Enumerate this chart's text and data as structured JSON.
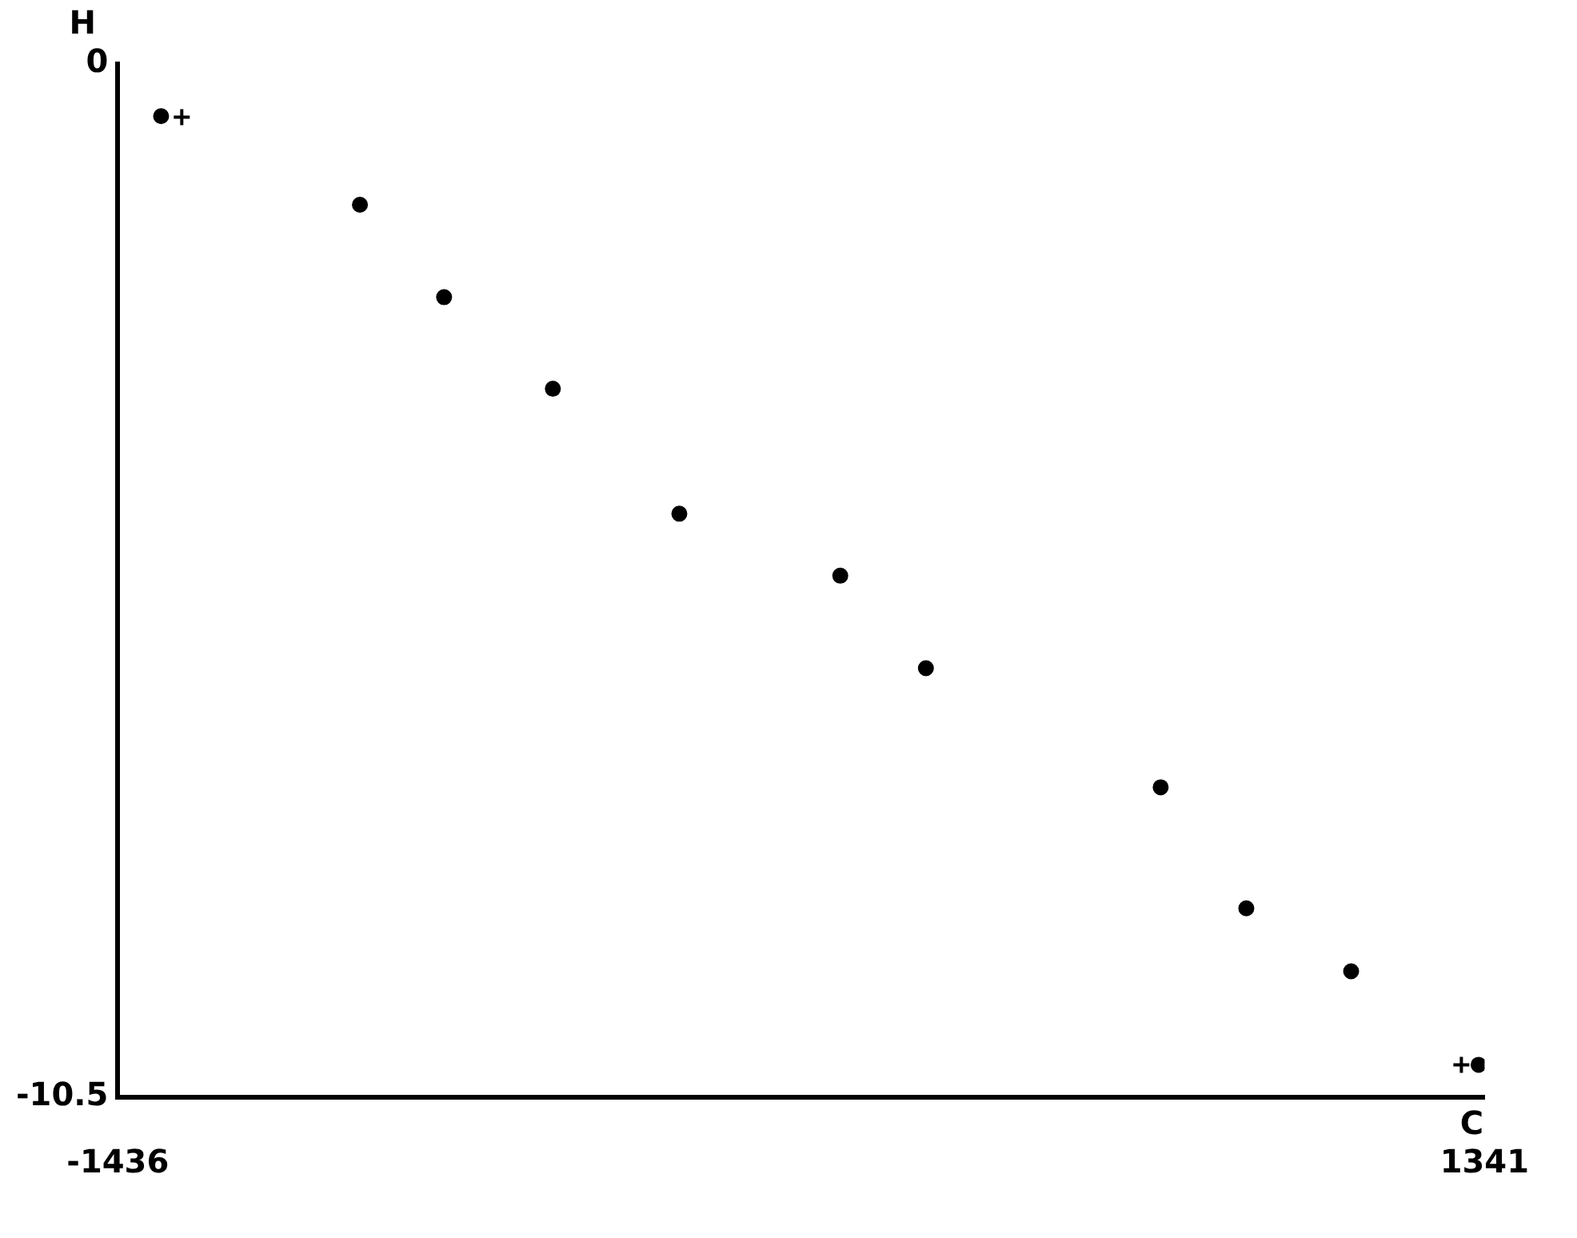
{
  "chart_data": {
    "type": "scatter",
    "xlabel": "C",
    "ylabel": "H",
    "xlim": [
      -1436,
      1341
    ],
    "xticks": [
      -1436,
      1341
    ],
    "ylim": [
      -10.5,
      0
    ],
    "yticks": [
      -10.5,
      0
    ],
    "grid": false,
    "legend": false,
    "marker": "circle",
    "series": [
      {
        "color": "#000000",
        "x": [
          -1348,
          -944,
          -773,
          -552,
          -295,
          32,
          206,
          683,
          857,
          1070,
          1329
        ],
        "values": [
          -0.53,
          -1.43,
          -2.37,
          -3.3,
          -4.57,
          -5.2,
          -6.14,
          -7.35,
          -8.58,
          -9.22,
          -10.17
        ]
      },
      {
        "color": "#000000",
        "marker": "cross",
        "x": [
          -1306,
          1294
        ],
        "values": [
          -0.54,
          -10.17
        ]
      }
    ]
  }
}
